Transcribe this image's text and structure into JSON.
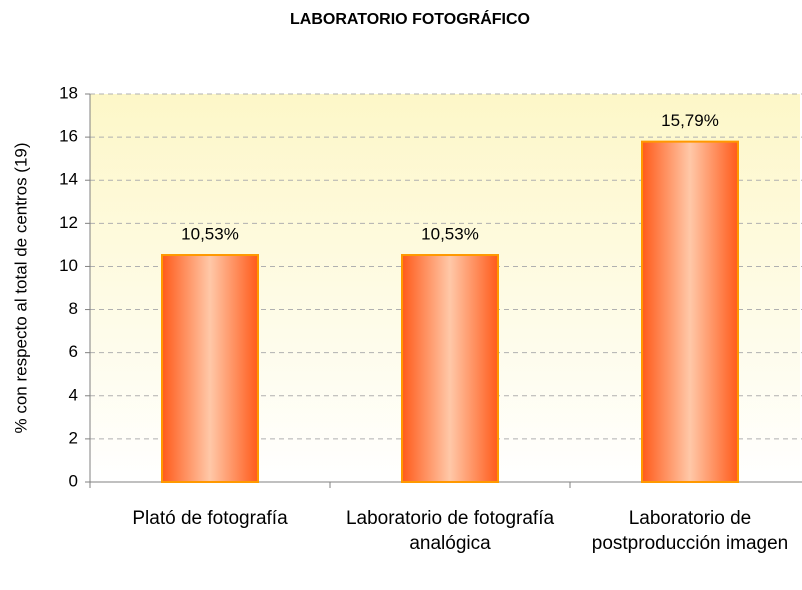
{
  "chart_data": {
    "type": "bar",
    "title": "LABORATORIO FOTOGRÁFICO",
    "y_label": "% con respecto al total de centros (19)",
    "categories": [
      "Plató de fotografía",
      "Laboratorio de fotografía analógica",
      "Laboratorio de postproducción imagen"
    ],
    "values": [
      10.53,
      10.53,
      15.79
    ],
    "value_labels": [
      "10,53%",
      "10,53%",
      "15,79%"
    ],
    "color": "#ff6a2a",
    "ylim": [
      0,
      18
    ],
    "yticks": [
      0,
      2,
      4,
      6,
      8,
      10,
      12,
      14,
      16,
      18
    ],
    "grid": true
  }
}
